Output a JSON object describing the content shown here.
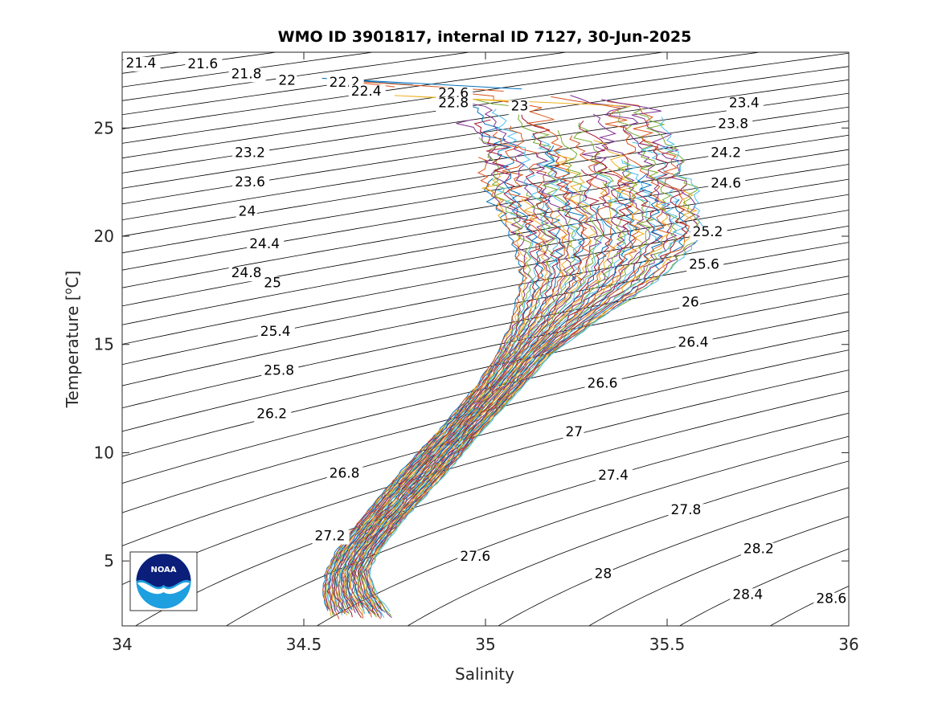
{
  "chart_data": {
    "type": "line",
    "title": "WMO ID 3901817, internal ID 7127, 30-Jun-2025",
    "xlabel": "Salinity",
    "ylabel_main": "Temperature [",
    "ylabel_sup": "o",
    "ylabel_tail": "C]",
    "xlim": [
      34,
      36
    ],
    "ylim": [
      2,
      28.5
    ],
    "x_ticks": [
      34,
      34.5,
      35,
      35.5,
      36
    ],
    "x_tick_labels": [
      "34",
      "34.5",
      "35",
      "35.5",
      "36"
    ],
    "y_ticks": [
      5,
      10,
      15,
      20,
      25
    ],
    "y_tick_labels": [
      "5",
      "10",
      "15",
      "20",
      "25"
    ],
    "grid": false,
    "density_contours": {
      "values": [
        21.4,
        21.6,
        21.8,
        22,
        22.2,
        22.4,
        22.6,
        22.8,
        23,
        23.2,
        23.4,
        23.6,
        23.8,
        24,
        24.2,
        24.4,
        24.6,
        24.8,
        25,
        25.2,
        25.4,
        25.6,
        25.8,
        26,
        26.2,
        26.4,
        26.6,
        26.8,
        27,
        27.2,
        27.4,
        27.6,
        27.8,
        28,
        28.2,
        28.4,
        28.6
      ],
      "labels": [
        {
          "text": "21.4",
          "s": 34.01,
          "t": 27.8
        },
        {
          "text": "21.6",
          "s": 34.18,
          "t": 27.75
        },
        {
          "text": "21.8",
          "s": 34.3,
          "t": 27.3
        },
        {
          "text": "22",
          "s": 34.43,
          "t": 27.0
        },
        {
          "text": "22.2",
          "s": 34.57,
          "t": 26.9
        },
        {
          "text": "22.4",
          "s": 34.63,
          "t": 26.5
        },
        {
          "text": "22.6",
          "s": 34.87,
          "t": 26.4
        },
        {
          "text": "22.8",
          "s": 34.87,
          "t": 25.95
        },
        {
          "text": "23",
          "s": 35.07,
          "t": 25.8
        },
        {
          "text": "23.2",
          "s": 34.31,
          "t": 23.65
        },
        {
          "text": "23.4",
          "s": 35.67,
          "t": 25.95
        },
        {
          "text": "23.6",
          "s": 34.31,
          "t": 22.3
        },
        {
          "text": "23.8",
          "s": 35.64,
          "t": 25.0
        },
        {
          "text": "24",
          "s": 34.32,
          "t": 20.95
        },
        {
          "text": "24.2",
          "s": 35.62,
          "t": 23.65
        },
        {
          "text": "24.4",
          "s": 34.35,
          "t": 19.45
        },
        {
          "text": "24.6",
          "s": 35.62,
          "t": 22.25
        },
        {
          "text": "24.8",
          "s": 34.3,
          "t": 18.1
        },
        {
          "text": "25",
          "s": 34.39,
          "t": 17.65
        },
        {
          "text": "25.2",
          "s": 35.57,
          "t": 20.0
        },
        {
          "text": "25.4",
          "s": 34.38,
          "t": 15.4
        },
        {
          "text": "25.6",
          "s": 35.56,
          "t": 18.5
        },
        {
          "text": "25.8",
          "s": 34.39,
          "t": 13.6
        },
        {
          "text": "26",
          "s": 35.54,
          "t": 16.75
        },
        {
          "text": "26.2",
          "s": 34.37,
          "t": 11.6
        },
        {
          "text": "26.4",
          "s": 35.53,
          "t": 14.9
        },
        {
          "text": "26.6",
          "s": 35.28,
          "t": 13.0
        },
        {
          "text": "26.8",
          "s": 34.57,
          "t": 8.85
        },
        {
          "text": "27",
          "s": 35.22,
          "t": 10.75
        },
        {
          "text": "27.2",
          "s": 34.53,
          "t": 5.95
        },
        {
          "text": "27.4",
          "s": 35.31,
          "t": 8.75
        },
        {
          "text": "27.6",
          "s": 34.93,
          "t": 5.0
        },
        {
          "text": "27.8",
          "s": 35.51,
          "t": 7.15
        },
        {
          "text": "28",
          "s": 35.3,
          "t": 4.2
        },
        {
          "text": "28.2",
          "s": 35.71,
          "t": 5.35
        },
        {
          "text": "28.4",
          "s": 35.68,
          "t": 3.25
        },
        {
          "text": "28.6",
          "s": 35.91,
          "t": 3.05
        }
      ]
    },
    "profile_envelope": [
      {
        "t": 2.3,
        "s": [
          34.57,
          34.75
        ]
      },
      {
        "t": 3.5,
        "s": [
          34.55,
          34.7
        ]
      },
      {
        "t": 4.5,
        "s": [
          34.56,
          34.68
        ]
      },
      {
        "t": 5.5,
        "s": [
          34.59,
          34.71
        ]
      },
      {
        "t": 7,
        "s": [
          34.66,
          34.78
        ]
      },
      {
        "t": 9,
        "s": [
          34.76,
          34.89
        ]
      },
      {
        "t": 11,
        "s": [
          34.87,
          34.99
        ]
      },
      {
        "t": 13,
        "s": [
          34.97,
          35.1
        ]
      },
      {
        "t": 14.5,
        "s": [
          35.03,
          35.18
        ]
      },
      {
        "t": 16,
        "s": [
          35.07,
          35.3
        ]
      },
      {
        "t": 18,
        "s": [
          35.1,
          35.48
        ]
      },
      {
        "t": 20,
        "s": [
          35.07,
          35.6
        ]
      },
      {
        "t": 22,
        "s": [
          35.0,
          35.58
        ]
      },
      {
        "t": 24,
        "s": [
          34.98,
          35.52
        ]
      },
      {
        "t": 26,
        "s": [
          34.9,
          35.45
        ]
      },
      {
        "t": 26.8,
        "s": [
          34.7,
          35.2
        ]
      }
    ],
    "series_colors": [
      "#0072bd",
      "#d95319",
      "#edb120",
      "#7e2f8e",
      "#77ac30",
      "#4dbeee",
      "#a2142f"
    ]
  },
  "logo": {
    "text": "NOAA"
  }
}
